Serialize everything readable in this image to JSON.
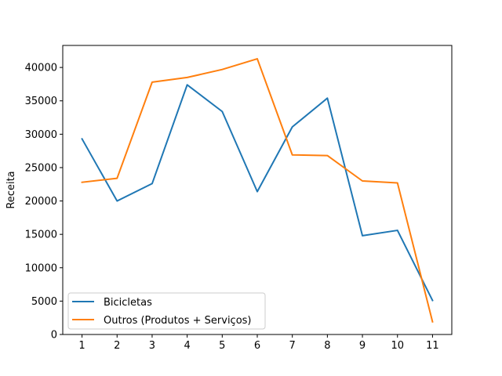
{
  "chart_data": {
    "type": "line",
    "x": [
      1,
      2,
      3,
      4,
      5,
      6,
      7,
      8,
      9,
      10,
      11
    ],
    "xticks": [
      "1",
      "2",
      "3",
      "4",
      "5",
      "6",
      "7",
      "8",
      "9",
      "10",
      "11"
    ],
    "xlim": [
      0.45,
      11.55
    ],
    "ylim": [
      0,
      43300
    ],
    "yticks": [
      0,
      5000,
      10000,
      15000,
      20000,
      25000,
      30000,
      35000,
      40000
    ],
    "ytick_labels": [
      "0",
      "5000",
      "10000",
      "15000",
      "20000",
      "25000",
      "30000",
      "35000",
      "40000"
    ],
    "xlabel": "",
    "ylabel": "Receita",
    "title": "",
    "grid": false,
    "legend_position": "lower-left",
    "series": [
      {
        "name": "Bicicletas",
        "color": "#1f77b4",
        "values": [
          29300,
          20000,
          22600,
          37400,
          33400,
          21400,
          31100,
          35400,
          14800,
          15600,
          5100
        ]
      },
      {
        "name": "Outros (Produtos + Serviços)",
        "color": "#ff7f0e",
        "values": [
          22800,
          23400,
          37800,
          38500,
          39700,
          41300,
          26900,
          26800,
          23000,
          22700,
          1900
        ]
      }
    ]
  }
}
